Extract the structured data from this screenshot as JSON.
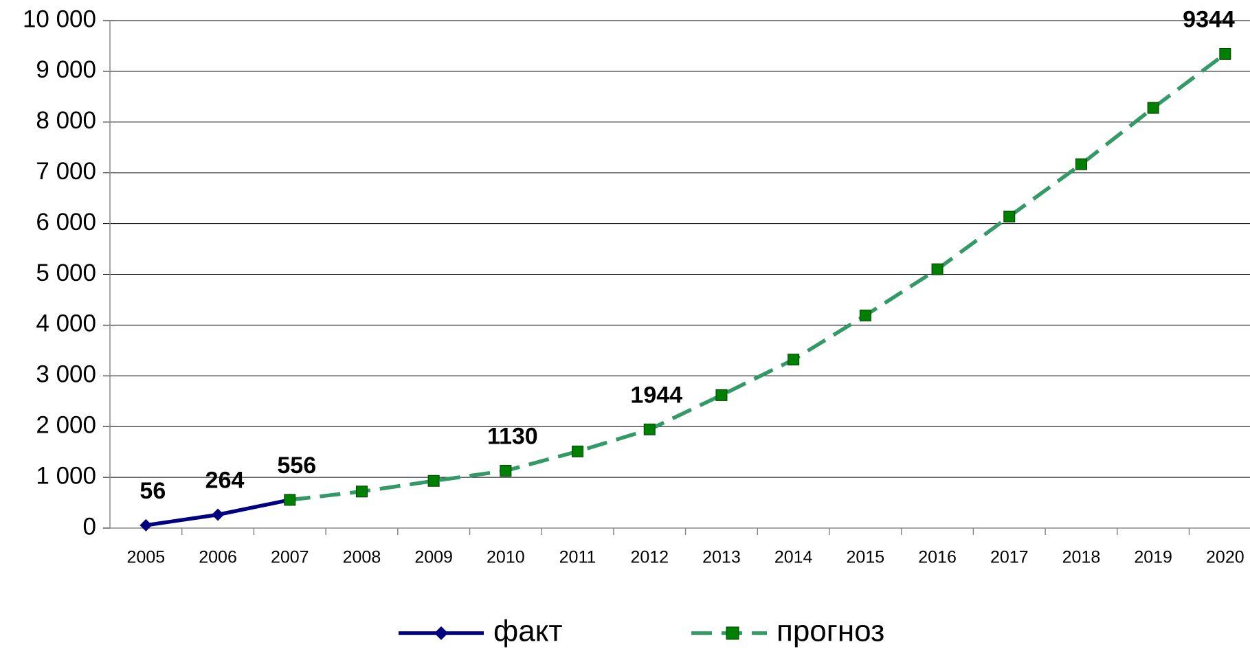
{
  "chart_data": {
    "type": "line",
    "categories": [
      "2005",
      "2006",
      "2007",
      "2008",
      "2009",
      "2010",
      "2011",
      "2012",
      "2013",
      "2014",
      "2015",
      "2016",
      "2017",
      "2018",
      "2019",
      "2020"
    ],
    "series": [
      {
        "name": "факт",
        "color": "#000080",
        "marker": "diamond",
        "dashed": false,
        "values": [
          56,
          264,
          556,
          null,
          null,
          null,
          null,
          null,
          null,
          null,
          null,
          null,
          null,
          null,
          null,
          null
        ],
        "value_labels": [
          "56",
          "264",
          "556",
          null,
          null,
          null,
          null,
          null,
          null,
          null,
          null,
          null,
          null,
          null,
          null,
          null
        ]
      },
      {
        "name": "прогноз",
        "color": "#339966",
        "marker_color": "#008000",
        "marker": "square",
        "dashed": true,
        "values": [
          null,
          null,
          556,
          720,
          930,
          1130,
          1510,
          1944,
          2620,
          3320,
          4190,
          5100,
          6140,
          7170,
          8280,
          9344
        ],
        "value_labels": [
          null,
          null,
          null,
          null,
          null,
          "1130",
          null,
          "1944",
          null,
          null,
          null,
          null,
          null,
          null,
          null,
          "9344"
        ]
      }
    ],
    "ylim": [
      0,
      10000
    ],
    "yticks": [
      0,
      {
        "value": 1000,
        "label": "1 000"
      },
      {
        "value": 2000,
        "label": "2 000"
      },
      {
        "value": 3000,
        "label": "3 000"
      },
      {
        "value": 4000,
        "label": "4 000"
      },
      {
        "value": 5000,
        "label": "5 000"
      },
      {
        "value": 6000,
        "label": "6 000"
      },
      {
        "value": 7000,
        "label": "7 000"
      },
      {
        "value": 8000,
        "label": "8 000"
      },
      {
        "value": 9000,
        "label": "9 000"
      },
      {
        "value": 10000,
        "label": "10 000"
      }
    ],
    "grid": true,
    "legend": "bottom"
  }
}
